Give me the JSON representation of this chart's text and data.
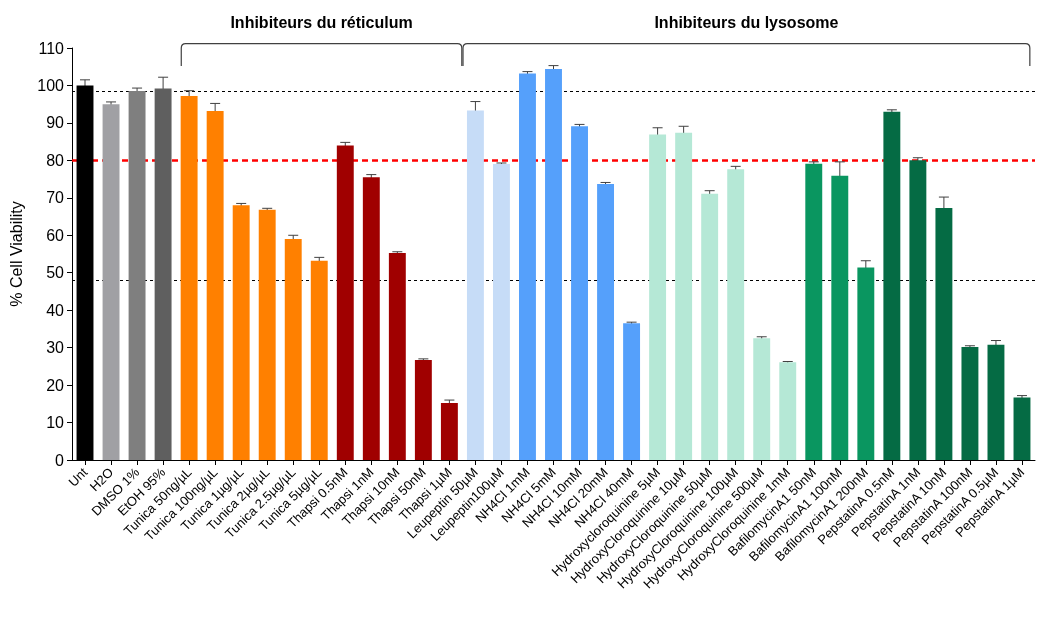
{
  "chart_data": {
    "type": "bar",
    "ylabel": "% Cell Viability",
    "annotations": [
      "Inhibiteurs du réticulum",
      "Inhibiteurs du lysosome"
    ],
    "categories": [
      "Unt",
      "H2O",
      "DMSO 1%",
      "EtOH 95%",
      "Tunica 50ng/µL",
      "Tunica 100ng/µL",
      "Tunica 1µg/µL",
      "Tunica 2µg/µL",
      "Tunica 2.5µg/µL",
      "Tunica 5µg/µL",
      "Thapsi 0.5nM",
      "Thapsi 1nM",
      "Thapsi 10nM",
      "Thapsi 50nM",
      "Thapsi 1µM",
      "Leupeptin 50µM",
      "Leupeptin100µM",
      "NH4Cl 1mM",
      "NH4Cl 5mM",
      "NH4Cl 10mM",
      "NH4Cl 20mM",
      "NH4Cl 40mM",
      "Hydroxycloroquinine 5µM",
      "HydroxyCloroquinine 10µM",
      "HydroxyCloroquinine 50µM",
      "HydroxyCloroquinine 100µM",
      "HydroxyCloroquinine 500µM",
      "HydroxyCloroquinine 1mM",
      "BafilomycinA1 50nM",
      "BafilomycinA1 100nM",
      "BafilomycinA1 200nM",
      "PepstatinA 0.5nM",
      "PepstatinA 1nM",
      "PepstatinA 10nM",
      "PepstatinA 100nM",
      "PepstatinA 0.5µM",
      "PepstatinA 1µM"
    ],
    "values": [
      100,
      95,
      98.5,
      99.2,
      97.2,
      93.2,
      68,
      66.8,
      59,
      53.2,
      84,
      75.5,
      55.3,
      26.7,
      15.2,
      93.3,
      79,
      103.2,
      104.4,
      89.1,
      73.7,
      36.5,
      86.9,
      87.4,
      71.1,
      77.6,
      32.5,
      26.1,
      79.1,
      75.9,
      51.4,
      93,
      80,
      67.3,
      30.2,
      30.8,
      16.7
    ],
    "errors": [
      1.5,
      0.6,
      0.8,
      3,
      1.4,
      2,
      0.5,
      0.4,
      1,
      0.9,
      0.8,
      0.7,
      0.3,
      0.3,
      0.8,
      2.4,
      0.3,
      0.5,
      0.9,
      0.5,
      0.4,
      0.3,
      1.8,
      1.7,
      0.8,
      0.8,
      0.4,
      0.2,
      0.5,
      3.7,
      1.8,
      0.5,
      0.7,
      2.9,
      0.3,
      1.1,
      0.5
    ],
    "colors": [
      "#000000",
      "#a0a0a4",
      "#7f7f7f",
      "#5f5f5f",
      "#ff8000",
      "#ff8000",
      "#ff8000",
      "#ff8000",
      "#ff8000",
      "#ff8000",
      "#a00000",
      "#a00000",
      "#a00000",
      "#a00000",
      "#a00000",
      "#c6dcf7",
      "#c6dcf7",
      "#55a0fb",
      "#55a0fb",
      "#55a0fb",
      "#55a0fb",
      "#55a0fb",
      "#b5e8d6",
      "#b5e8d6",
      "#b5e8d6",
      "#b5e8d6",
      "#b5e8d6",
      "#b5e8d6",
      "#0a9660",
      "#0a9660",
      "#0a9660",
      "#056b44",
      "#056b44",
      "#056b44",
      "#056b44",
      "#056b44",
      "#056b44"
    ],
    "ylim": [
      0,
      110
    ],
    "yticks": [
      0,
      10,
      20,
      30,
      40,
      50,
      60,
      70,
      80,
      90,
      100,
      110
    ],
    "ref_lines": [
      {
        "axis": "y",
        "value": 98.5,
        "color": "#000000",
        "line_style": "dotted"
      },
      {
        "axis": "y",
        "value": 80,
        "color": "#ff0000",
        "line_style": "dashed"
      },
      {
        "axis": "y",
        "value": 48,
        "color": "#000000",
        "line_style": "dotted"
      }
    ],
    "grid": false
  }
}
